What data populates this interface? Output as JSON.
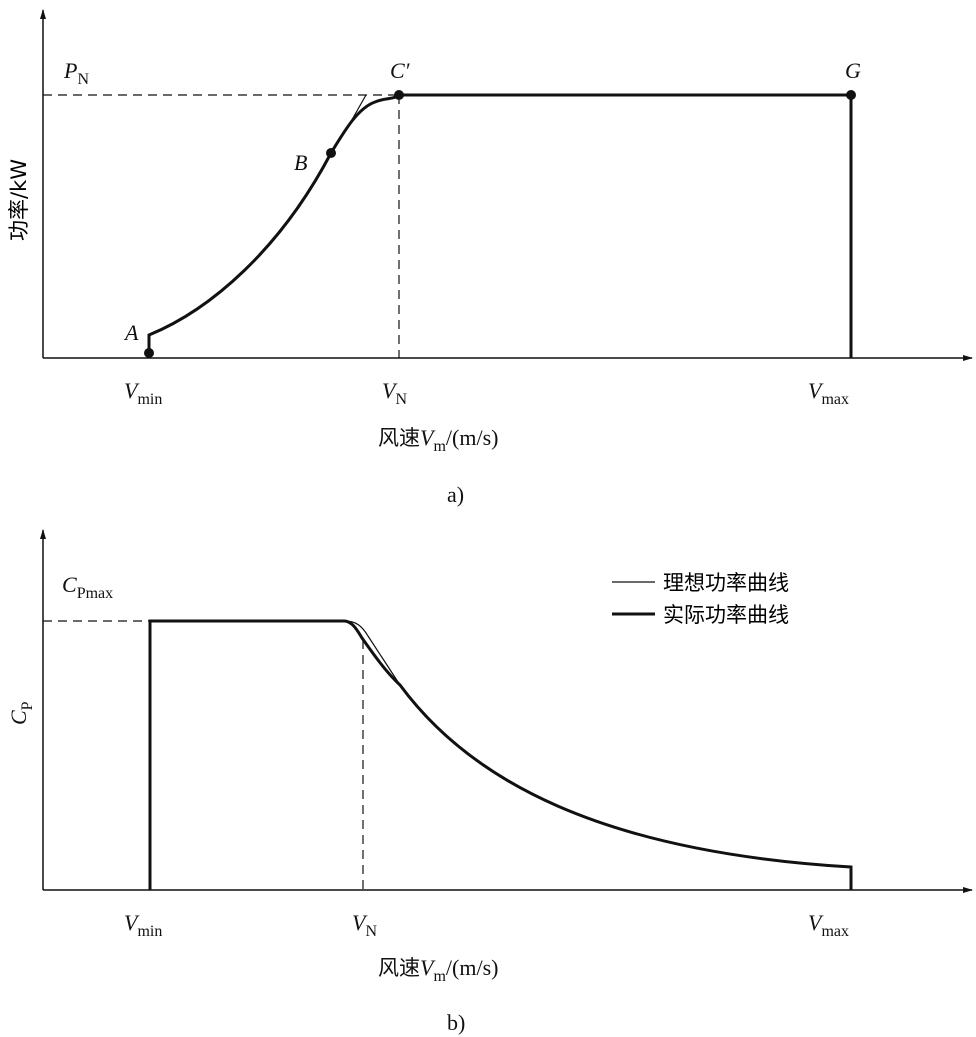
{
  "chart_data": [
    {
      "type": "line",
      "panel_label": "a)",
      "ylabel": "功率/kW",
      "xlabel_prefix": "风速",
      "xlabel_var": "V",
      "xlabel_sub": "m",
      "xlabel_unit": "/(m/s)",
      "x_ticks": [
        {
          "var": "V",
          "sub": "min"
        },
        {
          "var": "V",
          "sub": "N"
        },
        {
          "var": "V",
          "sub": "max"
        }
      ],
      "y_ref": {
        "var": "P",
        "sub": "N"
      },
      "points": [
        {
          "label": "A"
        },
        {
          "label": "B"
        },
        {
          "label": "C′"
        },
        {
          "label": "G"
        }
      ],
      "grid": false
    },
    {
      "type": "line",
      "panel_label": "b)",
      "ylabel_var": "C",
      "ylabel_sub": "P",
      "xlabel_prefix": "风速",
      "xlabel_var": "V",
      "xlabel_sub": "m",
      "xlabel_unit": "/(m/s)",
      "x_ticks": [
        {
          "var": "V",
          "sub": "min"
        },
        {
          "var": "V",
          "sub": "N"
        },
        {
          "var": "V",
          "sub": "max"
        }
      ],
      "y_ref": {
        "var": "C",
        "sub": "Pmax"
      },
      "series": [
        {
          "name": "理想功率曲线",
          "style": "thin"
        },
        {
          "name": "实际功率曲线",
          "style": "thick"
        }
      ],
      "legend_position": "top-right",
      "grid": false
    }
  ]
}
